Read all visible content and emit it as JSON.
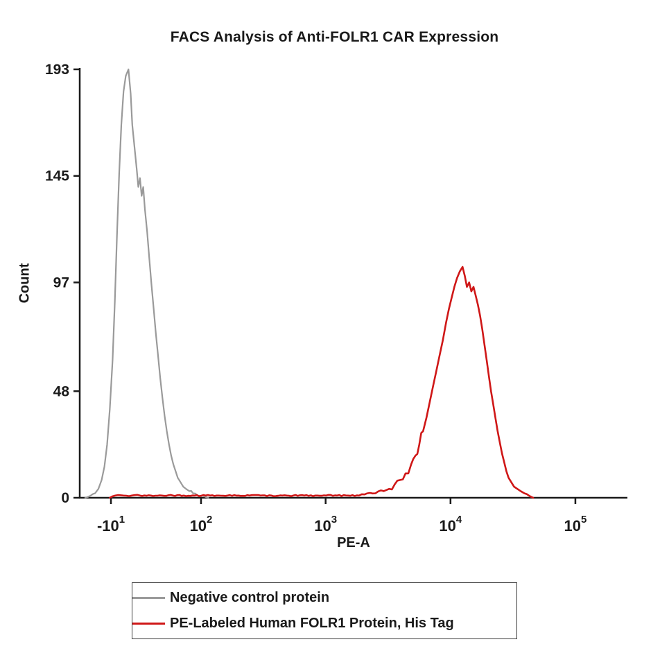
{
  "page": {
    "background": "#ffffff"
  },
  "chart_data": {
    "type": "area",
    "subtype": "flow-cytometry-histogram",
    "title": "FACS Analysis of Anti-FOLR1 CAR Expression",
    "xlabel": "PE-A",
    "ylabel": "Count",
    "ylim": [
      0,
      193
    ],
    "yticks": [
      0,
      48,
      97,
      145,
      193
    ],
    "xscale": "logicle",
    "grid": false,
    "legend_position": "bottom",
    "axis_color": "#1a1a1a",
    "xticks": [
      {
        "base": "-10",
        "exp": "1",
        "pos": 0.057
      },
      {
        "base": "10",
        "exp": "2",
        "pos": 0.2215
      },
      {
        "base": "10",
        "exp": "3",
        "pos": 0.449
      },
      {
        "base": "10",
        "exp": "4",
        "pos": 0.677
      },
      {
        "base": "10",
        "exp": "5",
        "pos": 0.905
      }
    ],
    "series": [
      {
        "name": "Negative control protein",
        "color": "#9a9a9a",
        "peak_count": 193,
        "peak_x_approx": "~10^1",
        "points": [
          [
            0.01,
            0
          ],
          [
            0.02,
            1
          ],
          [
            0.028,
            2
          ],
          [
            0.034,
            4
          ],
          [
            0.04,
            8
          ],
          [
            0.045,
            14
          ],
          [
            0.05,
            24
          ],
          [
            0.055,
            40
          ],
          [
            0.06,
            62
          ],
          [
            0.064,
            88
          ],
          [
            0.068,
            118
          ],
          [
            0.072,
            146
          ],
          [
            0.076,
            168
          ],
          [
            0.08,
            183
          ],
          [
            0.084,
            190
          ],
          [
            0.089,
            193
          ],
          [
            0.093,
            182
          ],
          [
            0.096,
            168
          ],
          [
            0.1,
            158
          ],
          [
            0.104,
            148
          ],
          [
            0.107,
            140
          ],
          [
            0.11,
            144
          ],
          [
            0.113,
            136
          ],
          [
            0.116,
            140
          ],
          [
            0.119,
            130
          ],
          [
            0.123,
            120
          ],
          [
            0.127,
            108
          ],
          [
            0.131,
            96
          ],
          [
            0.135,
            85
          ],
          [
            0.139,
            74
          ],
          [
            0.143,
            64
          ],
          [
            0.147,
            54
          ],
          [
            0.151,
            45
          ],
          [
            0.155,
            37
          ],
          [
            0.159,
            30
          ],
          [
            0.163,
            24
          ],
          [
            0.167,
            19
          ],
          [
            0.171,
            15
          ],
          [
            0.175,
            12
          ],
          [
            0.179,
            9
          ],
          [
            0.184,
            7
          ],
          [
            0.189,
            5
          ],
          [
            0.194,
            4
          ],
          [
            0.2,
            3
          ],
          [
            0.207,
            2
          ],
          [
            0.215,
            1
          ],
          [
            0.225,
            1
          ],
          [
            0.235,
            0
          ]
        ]
      },
      {
        "name": "PE-Labeled Human FOLR1 Protein, His Tag",
        "color": "#cf1717",
        "peak_count": 104,
        "peak_x_approx": "~1.2x10^4",
        "points": [
          [
            0.055,
            0
          ],
          [
            0.065,
            1
          ],
          [
            0.08,
            1
          ],
          [
            0.095,
            1
          ],
          [
            0.11,
            1
          ],
          [
            0.13,
            1
          ],
          [
            0.15,
            1
          ],
          [
            0.17,
            1
          ],
          [
            0.19,
            1
          ],
          [
            0.21,
            1
          ],
          [
            0.23,
            1
          ],
          [
            0.25,
            1
          ],
          [
            0.27,
            1
          ],
          [
            0.29,
            1
          ],
          [
            0.31,
            1
          ],
          [
            0.33,
            1
          ],
          [
            0.35,
            1
          ],
          [
            0.37,
            1
          ],
          [
            0.39,
            1
          ],
          [
            0.41,
            1
          ],
          [
            0.43,
            1
          ],
          [
            0.45,
            1
          ],
          [
            0.47,
            1
          ],
          [
            0.49,
            1
          ],
          [
            0.51,
            1
          ],
          [
            0.525,
            2
          ],
          [
            0.54,
            2
          ],
          [
            0.555,
            3
          ],
          [
            0.565,
            4
          ],
          [
            0.575,
            6
          ],
          [
            0.585,
            8
          ],
          [
            0.595,
            11
          ],
          [
            0.605,
            15
          ],
          [
            0.613,
            19
          ],
          [
            0.62,
            24
          ],
          [
            0.627,
            30
          ],
          [
            0.633,
            36
          ],
          [
            0.639,
            43
          ],
          [
            0.645,
            50
          ],
          [
            0.651,
            57
          ],
          [
            0.657,
            64
          ],
          [
            0.663,
            71
          ],
          [
            0.669,
            79
          ],
          [
            0.674,
            85
          ],
          [
            0.679,
            90
          ],
          [
            0.684,
            95
          ],
          [
            0.689,
            99
          ],
          [
            0.694,
            102
          ],
          [
            0.699,
            104
          ],
          [
            0.703,
            100
          ],
          [
            0.707,
            95
          ],
          [
            0.711,
            97
          ],
          [
            0.715,
            93
          ],
          [
            0.719,
            95
          ],
          [
            0.723,
            91
          ],
          [
            0.727,
            87
          ],
          [
            0.731,
            82
          ],
          [
            0.735,
            76
          ],
          [
            0.739,
            69
          ],
          [
            0.743,
            62
          ],
          [
            0.747,
            55
          ],
          [
            0.751,
            48
          ],
          [
            0.755,
            42
          ],
          [
            0.759,
            36
          ],
          [
            0.763,
            30
          ],
          [
            0.767,
            25
          ],
          [
            0.771,
            20
          ],
          [
            0.775,
            16
          ],
          [
            0.779,
            12
          ],
          [
            0.783,
            9
          ],
          [
            0.788,
            7
          ],
          [
            0.793,
            5
          ],
          [
            0.799,
            4
          ],
          [
            0.805,
            3
          ],
          [
            0.812,
            2
          ],
          [
            0.82,
            1
          ],
          [
            0.828,
            0
          ]
        ]
      }
    ]
  }
}
